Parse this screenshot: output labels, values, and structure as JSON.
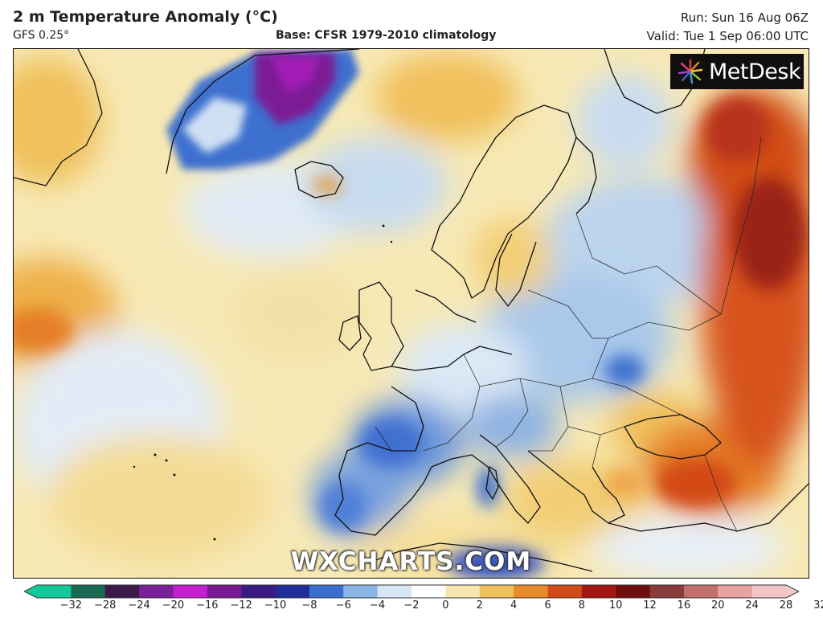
{
  "header": {
    "title": "2 m Temperature Anomaly (°C)",
    "model": "GFS 0.25°",
    "base": "Base: CFSR 1979-2010 climatology",
    "run": "Run: Sun 16 Aug 06Z",
    "valid": "Valid: Tue 1 Sep 06:00 UTC"
  },
  "brand": {
    "name": "MetDesk",
    "icon": "metdesk-burst-icon"
  },
  "watermark": "WXCHARTS.COM",
  "colorbar": {
    "ticks": [
      "−32",
      "−28",
      "−24",
      "−20",
      "−16",
      "−12",
      "−10",
      "−8",
      "−6",
      "−4",
      "−2",
      "0",
      "2",
      "4",
      "6",
      "8",
      "10",
      "12",
      "16",
      "20",
      "24",
      "28",
      "32"
    ],
    "stops": [
      "#12c99a",
      "#176b53",
      "#3b1a49",
      "#7a1f9a",
      "#c61fd1",
      "#7b1893",
      "#3a1a83",
      "#1f2e9a",
      "#3a6ed0",
      "#8ab6e6",
      "#d7e6f4",
      "#ffffff",
      "#f6e7b0",
      "#f0c05a",
      "#e78a2a",
      "#d24b17",
      "#a31612",
      "#6f0d0d",
      "#8a3b3b",
      "#c46e6e",
      "#e8a2a2",
      "#f2c6c6"
    ],
    "colors": {
      "cold_end": "#12c99a",
      "warm_end": "#f4c9c9"
    }
  },
  "map": {
    "region": "Europe & North Atlantic",
    "palette": {
      "ocean_neutral": "#f7e9b5",
      "slight_warm": "#f1cd72",
      "warm": "#e8962e",
      "hot": "#d34a14",
      "very_hot": "#8e1a10",
      "slight_cool": "#dfeaf5",
      "cool": "#9cc0e6",
      "cold": "#3e6fcf",
      "very_cold": "#2a2f9c",
      "extreme_cold": "#7b1a95",
      "coast": "#111111"
    }
  }
}
